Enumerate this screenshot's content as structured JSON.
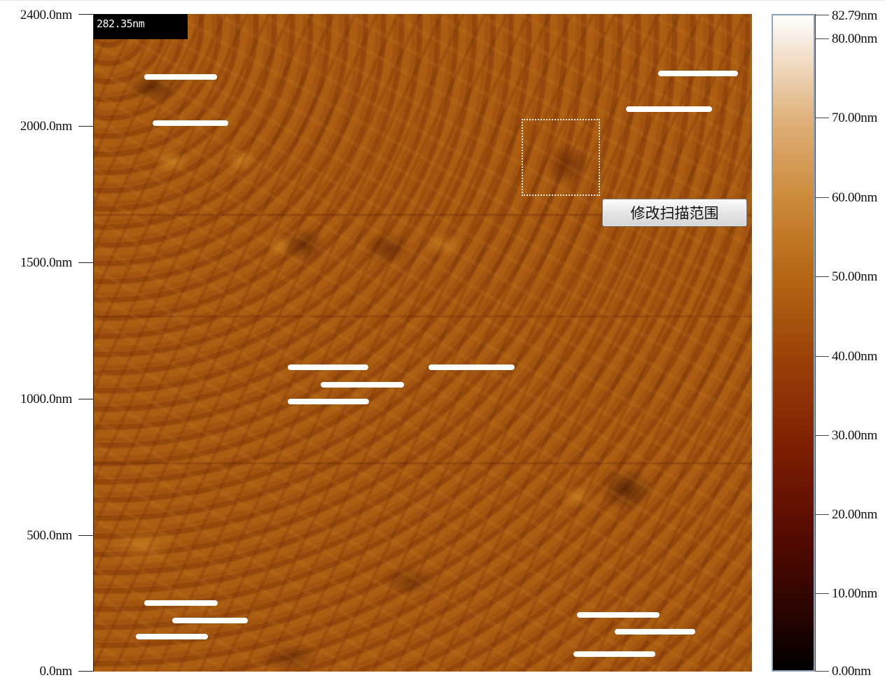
{
  "y_axis": {
    "ticks": [
      "2400.0nm",
      "2000.0nm",
      "1500.0nm",
      "1000.0nm",
      "500.0nm",
      "0.0nm"
    ]
  },
  "image": {
    "scale_label": "282.35nm",
    "colormap": "afmhot",
    "colors": {
      "dark": "#000000",
      "mid": "#a85a12",
      "light": "#ffffff"
    }
  },
  "context_button": {
    "label": "修改扫描范围"
  },
  "color_scale": {
    "ticks": [
      "82.79nm",
      "80.00nm",
      "70.00nm",
      "60.00nm",
      "50.00nm",
      "40.00nm",
      "30.00nm",
      "20.00nm",
      "10.00nm",
      "0.00nm"
    ],
    "border_color": "#8fa2b8"
  }
}
